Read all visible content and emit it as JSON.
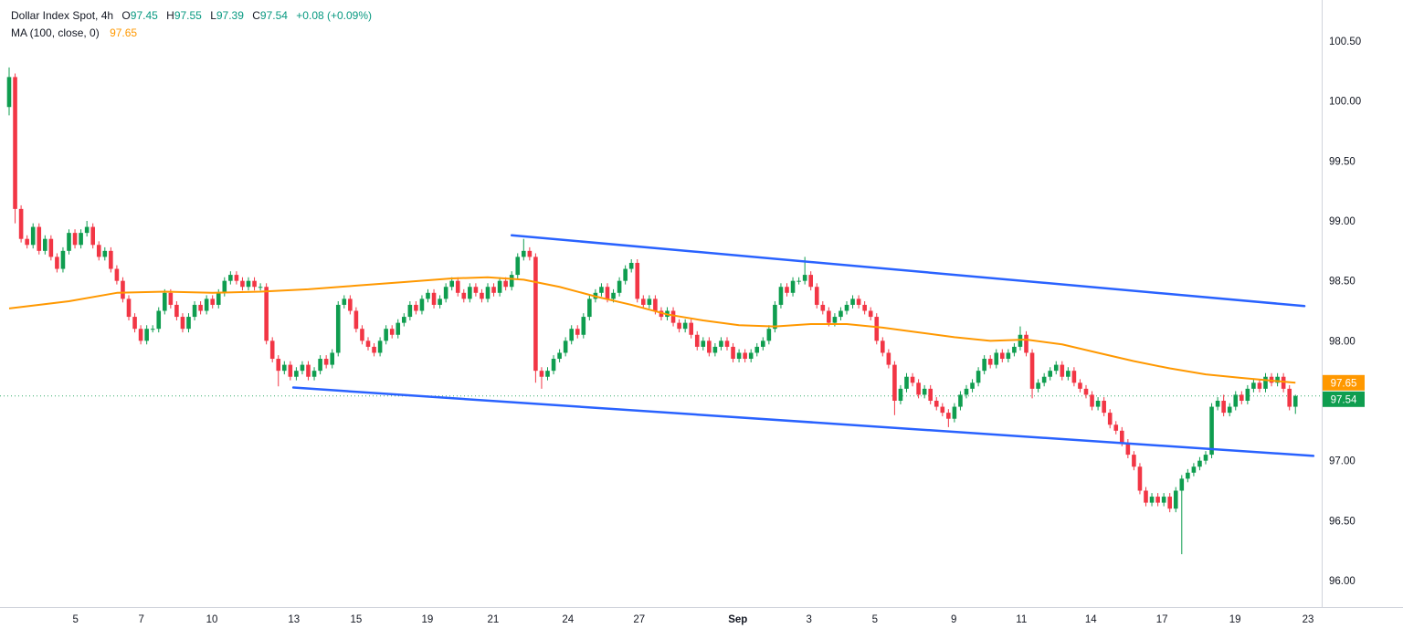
{
  "legend": {
    "symbol_title": "Dollar Index Spot, 4h",
    "o_label": "O",
    "o_value": "97.45",
    "h_label": "H",
    "h_value": "97.55",
    "l_label": "L",
    "l_value": "97.39",
    "c_label": "C",
    "c_value": "97.54",
    "change": "+0.08 (+0.09%)",
    "ma_label": "MA (100, close, 0)",
    "ma_value": "97.65"
  },
  "colors": {
    "up": "#0f9d4f",
    "down": "#f23645",
    "ma": "#ff9800",
    "trend": "#2962ff",
    "text": "#131722",
    "axis_line": "#d1d4dc",
    "badge_text": "#ffffff",
    "background": "#ffffff"
  },
  "chart_data": {
    "type": "candlestick",
    "title": "Dollar Index Spot, 4h",
    "interval": "4h",
    "last_quote": {
      "open": 97.45,
      "high": 97.55,
      "low": 97.39,
      "close": 97.54,
      "change": 0.08,
      "change_pct": 0.09
    },
    "ma": {
      "label": "MA (100, close, 0)",
      "current": 97.65
    },
    "current_price": 97.54,
    "y_ticks": [
      100.5,
      100.0,
      99.5,
      99.0,
      98.5,
      98.0,
      97.5,
      97.0,
      96.5,
      96.0
    ],
    "ylim": [
      95.85,
      100.77
    ],
    "x_ticks": [
      {
        "label": "5",
        "i": 11.1
      },
      {
        "label": "7",
        "i": 22.1
      },
      {
        "label": "10",
        "i": 33.9
      },
      {
        "label": "13",
        "i": 47.6
      },
      {
        "label": "15",
        "i": 58.0
      },
      {
        "label": "19",
        "i": 69.9
      },
      {
        "label": "21",
        "i": 80.9
      },
      {
        "label": "24",
        "i": 93.4
      },
      {
        "label": "27",
        "i": 105.3
      },
      {
        "label": "Sep",
        "i": 121.8,
        "major": true
      },
      {
        "label": "3",
        "i": 133.7
      },
      {
        "label": "5",
        "i": 144.7
      },
      {
        "label": "9",
        "i": 157.9
      },
      {
        "label": "11",
        "i": 169.2
      },
      {
        "label": "14",
        "i": 180.8
      },
      {
        "label": "17",
        "i": 192.7
      },
      {
        "label": "19",
        "i": 204.9
      },
      {
        "label": "23",
        "i": 217.1
      }
    ],
    "first_open": 99.95,
    "default_wick": 0.03,
    "closes": [
      100.2,
      99.1,
      98.85,
      98.8,
      98.95,
      98.75,
      98.85,
      98.7,
      98.6,
      98.75,
      98.9,
      98.8,
      98.9,
      98.95,
      98.8,
      98.7,
      98.75,
      98.6,
      98.5,
      98.35,
      98.2,
      98.1,
      98.0,
      98.1,
      98.1,
      98.25,
      98.4,
      98.3,
      98.2,
      98.1,
      98.2,
      98.3,
      98.25,
      98.35,
      98.3,
      98.4,
      98.5,
      98.55,
      98.5,
      98.45,
      98.5,
      98.45,
      98.45,
      98.0,
      97.85,
      97.75,
      97.8,
      97.7,
      97.75,
      97.8,
      97.7,
      97.75,
      97.85,
      97.8,
      97.9,
      98.3,
      98.35,
      98.25,
      98.1,
      98.0,
      97.95,
      97.9,
      98.0,
      98.1,
      98.05,
      98.15,
      98.2,
      98.3,
      98.25,
      98.35,
      98.4,
      98.3,
      98.35,
      98.45,
      98.5,
      98.4,
      98.35,
      98.45,
      98.4,
      98.35,
      98.45,
      98.4,
      98.5,
      98.45,
      98.55,
      98.7,
      98.75,
      98.7,
      97.75,
      97.7,
      97.75,
      97.85,
      97.9,
      98.0,
      98.1,
      98.05,
      98.2,
      98.35,
      98.4,
      98.45,
      98.35,
      98.4,
      98.5,
      98.6,
      98.65,
      98.35,
      98.3,
      98.35,
      98.25,
      98.2,
      98.25,
      98.15,
      98.1,
      98.15,
      98.05,
      97.95,
      98.0,
      97.9,
      97.95,
      98.0,
      97.95,
      97.85,
      97.9,
      97.85,
      97.9,
      97.95,
      98.0,
      98.1,
      98.3,
      98.45,
      98.4,
      98.5,
      98.5,
      98.55,
      98.45,
      98.3,
      98.25,
      98.15,
      98.2,
      98.25,
      98.3,
      98.35,
      98.3,
      98.25,
      98.2,
      98.0,
      97.9,
      97.8,
      97.5,
      97.6,
      97.7,
      97.65,
      97.55,
      97.6,
      97.5,
      97.45,
      97.4,
      97.35,
      97.45,
      97.55,
      97.6,
      97.65,
      97.75,
      97.85,
      97.8,
      97.9,
      97.85,
      97.9,
      97.95,
      98.05,
      97.9,
      97.6,
      97.65,
      97.7,
      97.75,
      97.8,
      97.7,
      97.75,
      97.65,
      97.6,
      97.55,
      97.45,
      97.5,
      97.4,
      97.3,
      97.25,
      97.15,
      97.05,
      96.95,
      96.75,
      96.65,
      96.7,
      96.65,
      96.7,
      96.6,
      96.75,
      96.85,
      96.9,
      96.95,
      97.0,
      97.05,
      97.45,
      97.5,
      97.4,
      97.45,
      97.55,
      97.5,
      97.6,
      97.65,
      97.6,
      97.7,
      97.65,
      97.7,
      97.6,
      97.45,
      97.54
    ],
    "wick_overrides": {
      "0": [
        100.28,
        99.88
      ],
      "1": [
        null,
        98.98
      ],
      "13": [
        99.0,
        null
      ],
      "45": [
        null,
        97.62
      ],
      "86": [
        98.85,
        null
      ],
      "88": [
        null,
        97.65
      ],
      "89": [
        null,
        97.6
      ],
      "133": [
        98.7,
        null
      ],
      "148": [
        null,
        97.38
      ],
      "157": [
        null,
        97.28
      ],
      "169": [
        98.12,
        null
      ],
      "171": [
        null,
        97.52
      ],
      "196": [
        null,
        96.22
      ],
      "203": [
        97.55,
        null
      ]
    },
    "last_candle": [
      97.45,
      97.55,
      97.39,
      97.54
    ],
    "ma_points": [
      [
        0,
        98.27
      ],
      [
        10,
        98.33
      ],
      [
        18,
        98.4
      ],
      [
        26,
        98.41
      ],
      [
        34,
        98.4
      ],
      [
        42,
        98.41
      ],
      [
        50,
        98.43
      ],
      [
        58,
        98.46
      ],
      [
        66,
        98.49
      ],
      [
        74,
        98.52
      ],
      [
        80,
        98.53
      ],
      [
        86,
        98.51
      ],
      [
        92,
        98.45
      ],
      [
        98,
        98.37
      ],
      [
        104,
        98.3
      ],
      [
        110,
        98.22
      ],
      [
        116,
        98.17
      ],
      [
        122,
        98.13
      ],
      [
        128,
        98.12
      ],
      [
        134,
        98.14
      ],
      [
        140,
        98.14
      ],
      [
        146,
        98.11
      ],
      [
        152,
        98.07
      ],
      [
        158,
        98.03
      ],
      [
        164,
        98.0
      ],
      [
        170,
        98.01
      ],
      [
        176,
        97.97
      ],
      [
        182,
        97.9
      ],
      [
        188,
        97.83
      ],
      [
        194,
        97.77
      ],
      [
        200,
        97.72
      ],
      [
        206,
        97.69
      ],
      [
        215,
        97.65
      ]
    ],
    "trendlines": [
      {
        "name": "channel-upper",
        "i1": 84,
        "p1": 98.88,
        "i2": 216.5,
        "p2": 98.29
      },
      {
        "name": "channel-lower",
        "i1": 47.5,
        "p1": 97.61,
        "i2": 218.0,
        "p2": 97.04
      }
    ],
    "price_badges": [
      {
        "name": "ma-price-badge",
        "value": "97.65",
        "price": 97.65,
        "color": "#ff9800"
      },
      {
        "name": "last-price-badge",
        "value": "97.54",
        "price": 97.54,
        "color": "#0f9d4f"
      }
    ]
  }
}
